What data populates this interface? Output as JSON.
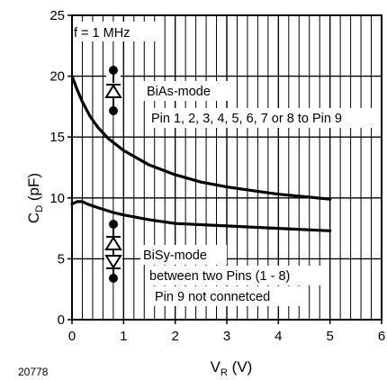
{
  "chart_data": {
    "type": "line",
    "x_label": {
      "main": "V",
      "sub": "R",
      "unit": " (V)"
    },
    "y_label": {
      "main": "C",
      "sub": "D",
      "unit": " (pF)"
    },
    "xlim": [
      0,
      6
    ],
    "ylim": [
      0,
      25
    ],
    "x_ticks": [
      "0",
      "1",
      "2",
      "3",
      "4",
      "5",
      "6"
    ],
    "y_ticks": [
      "0",
      "5",
      "10",
      "15",
      "20",
      "25"
    ],
    "grid": {
      "major_y": true,
      "vertical_lines_per_unit": 5
    },
    "series": [
      {
        "x": [
          0,
          0.1,
          0.2,
          0.35,
          0.5,
          0.7,
          1.0,
          1.5,
          2.0,
          2.5,
          3.0,
          3.5,
          4.0,
          4.5,
          5.0
        ],
        "y": [
          20.0,
          18.9,
          17.9,
          16.7,
          15.8,
          14.9,
          13.9,
          12.7,
          11.9,
          11.3,
          10.9,
          10.6,
          10.3,
          10.1,
          9.9
        ]
      },
      {
        "x": [
          0,
          0.1,
          0.2,
          0.3,
          0.5,
          0.8,
          1.0,
          1.5,
          2.0,
          3.0,
          4.0,
          5.0
        ],
        "y": [
          9.5,
          9.7,
          9.7,
          9.5,
          9.2,
          8.8,
          8.6,
          8.2,
          7.9,
          7.7,
          7.5,
          7.3
        ]
      }
    ],
    "annotations": {
      "frequency": "f = 1 MHz",
      "bias_mode": "BiAs-mode",
      "bias_pins": "Pin 1, 2, 3, 4, 5, 6, 7 or 8 to Pin 9",
      "bisy_mode": "BiSy-mode",
      "bisy_pins": "between two Pins (1 - 8)",
      "bisy_note": "Pin 9 not connetced"
    },
    "figure_id": "20778"
  }
}
